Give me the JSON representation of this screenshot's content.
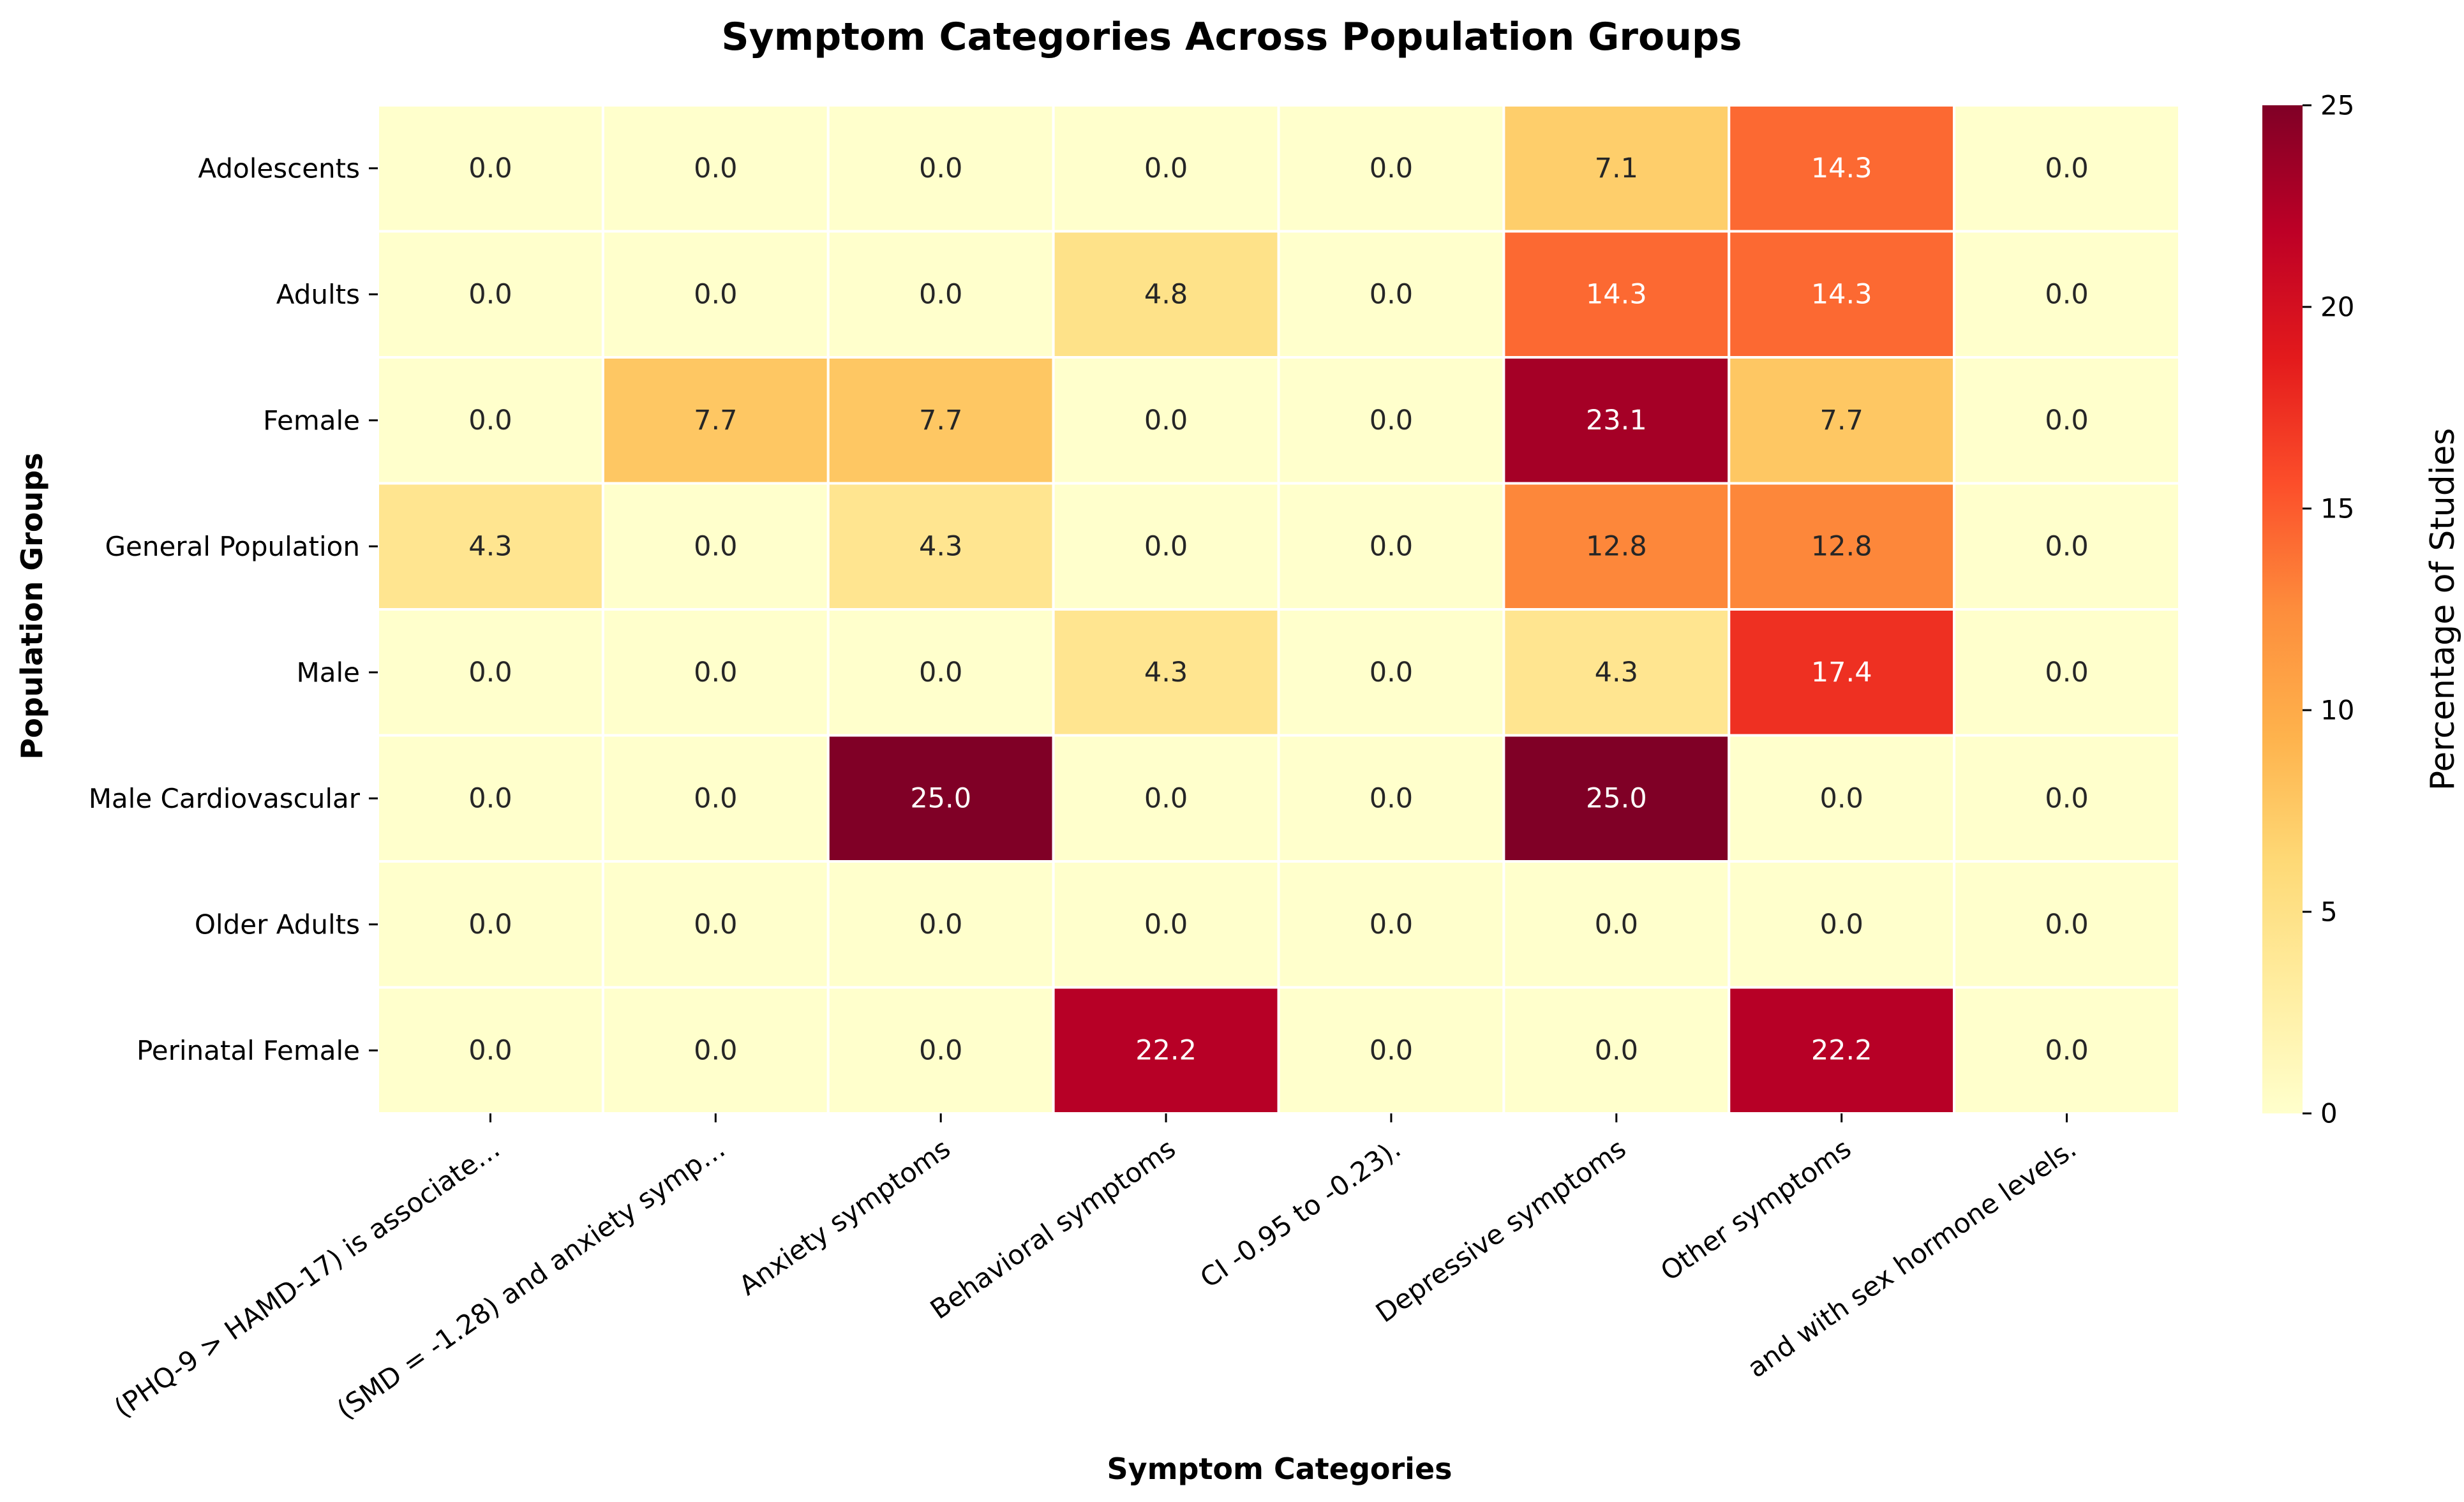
{
  "chart_data": {
    "type": "heatmap",
    "title": "Symptom Categories Across Population Groups",
    "xlabel": "Symptom Categories",
    "ylabel": "Population Groups",
    "colorbar_label": "Percentage of Studies",
    "colormap": "YlOrRd",
    "vmin": 0,
    "vmax": 25,
    "colorbar_ticks": [
      0,
      5,
      10,
      15,
      20,
      25
    ],
    "annotations": true,
    "columns": [
      "(PHQ-9 > HAMD-17) is associate…",
      "(SMD = -1.28) and anxiety symp…",
      "Anxiety symptoms",
      "Behavioral symptoms",
      "CI -0.95 to -0.23).",
      "Depressive symptoms",
      "Other symptoms",
      "and with sex hormone levels."
    ],
    "rows": [
      "Adolescents",
      "Adults",
      "Female",
      "General Population",
      "Male",
      "Male Cardiovascular",
      "Older Adults",
      "Perinatal Female"
    ],
    "values": [
      [
        0.0,
        0.0,
        0.0,
        0.0,
        0.0,
        7.1,
        14.3,
        0.0
      ],
      [
        0.0,
        0.0,
        0.0,
        4.8,
        0.0,
        14.3,
        14.3,
        0.0
      ],
      [
        0.0,
        7.7,
        7.7,
        0.0,
        0.0,
        23.1,
        7.7,
        0.0
      ],
      [
        4.3,
        0.0,
        4.3,
        0.0,
        0.0,
        12.8,
        12.8,
        0.0
      ],
      [
        0.0,
        0.0,
        0.0,
        4.3,
        0.0,
        4.3,
        17.4,
        0.0
      ],
      [
        0.0,
        0.0,
        25.0,
        0.0,
        0.0,
        25.0,
        0.0,
        0.0
      ],
      [
        0.0,
        0.0,
        0.0,
        0.0,
        0.0,
        0.0,
        0.0,
        0.0
      ],
      [
        0.0,
        0.0,
        0.0,
        22.2,
        0.0,
        0.0,
        22.2,
        0.0
      ]
    ]
  }
}
